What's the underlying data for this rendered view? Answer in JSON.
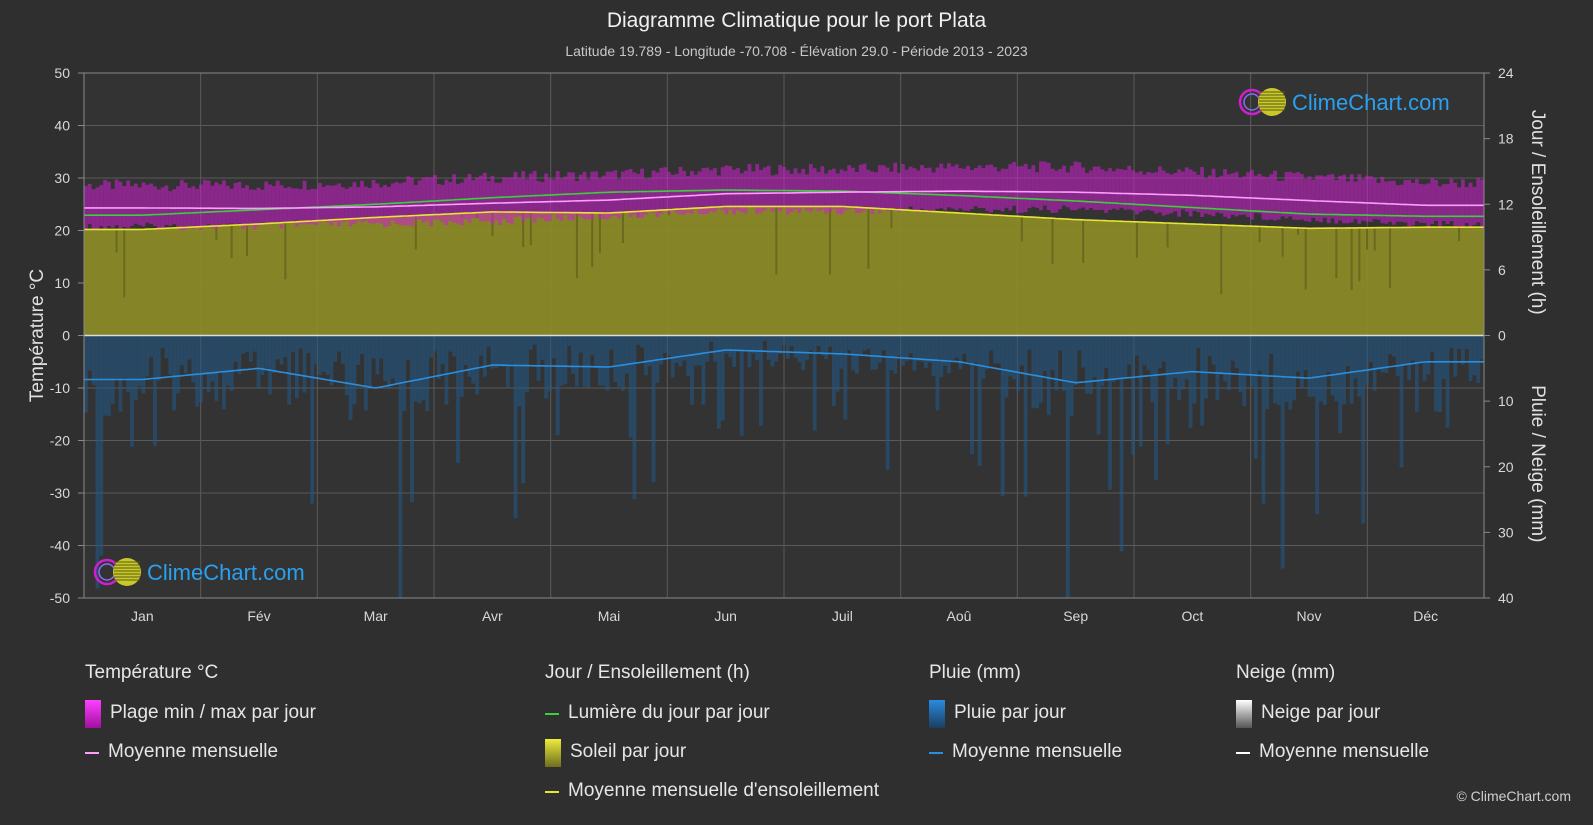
{
  "header": {
    "title": "Diagramme Climatique pour le port Plata",
    "subtitle": "Latitude 19.789 - Longitude -70.708 - Élévation 29.0 - Période 2013 - 2023"
  },
  "axes": {
    "left_label": "Température °C",
    "right_top_label": "Jour / Ensoleillement (h)",
    "right_bottom_label": "Pluie / Neige (mm)",
    "left_ticks": [
      "50",
      "40",
      "30",
      "20",
      "10",
      "0",
      "-10",
      "-20",
      "-30",
      "-40",
      "-50"
    ],
    "right_top_ticks": [
      "24",
      "18",
      "12",
      "6",
      "0"
    ],
    "right_bottom_ticks": [
      "10",
      "20",
      "30",
      "40"
    ]
  },
  "logo_text": "ClimeChart.com",
  "copyright": "© ClimeChart.com",
  "legend": {
    "temperature": {
      "title": "Température °C",
      "range": "Plage min / max par jour",
      "mean": "Moyenne mensuelle"
    },
    "sun": {
      "title": "Jour / Ensoleillement (h)",
      "daylight": "Lumière du jour par jour",
      "sunshine": "Soleil par jour",
      "mean": "Moyenne mensuelle d'ensoleillement"
    },
    "rain": {
      "title": "Pluie (mm)",
      "daily": "Pluie par jour",
      "mean": "Moyenne mensuelle"
    },
    "snow": {
      "title": "Neige (mm)",
      "daily": "Neige par jour",
      "mean": "Moyenne mensuelle"
    }
  },
  "colors": {
    "background": "#2f2f2f",
    "temp_range": "#d21ed2",
    "temp_mean": "#ff9cff",
    "daylight": "#3ccf3c",
    "sunshine_fill": "#8c8c26",
    "sunshine_mean": "#e6e632",
    "rain_fill": "#1f5a8a",
    "rain_mean": "#2b8fe0",
    "snow_mean": "#ffffff",
    "logo_text": "#2aa0f0"
  },
  "chart_data": {
    "type": "area",
    "title": "Diagramme Climatique pour le port Plata",
    "categories": [
      "Jan",
      "Fév",
      "Mar",
      "Avr",
      "Mai",
      "Jun",
      "Juil",
      "Aoû",
      "Sep",
      "Oct",
      "Nov",
      "Déc"
    ],
    "temperature_axis": {
      "label": "Température °C",
      "range": [
        -50,
        50
      ]
    },
    "sun_axis": {
      "label": "Jour / Ensoleillement (h)",
      "range": [
        0,
        24
      ]
    },
    "precip_axis": {
      "label": "Pluie / Neige (mm)",
      "range": [
        0,
        40
      ],
      "inverted": true
    },
    "series": [
      {
        "name": "Plage min / max par jour",
        "axis": "temperature",
        "min": [
          21.5,
          21.5,
          22,
          22.5,
          23.5,
          24.5,
          24.5,
          24.8,
          24.8,
          24,
          23,
          22
        ],
        "max": [
          27.5,
          27.5,
          28,
          29,
          29.5,
          30.5,
          30.5,
          31,
          31,
          30,
          29,
          28
        ]
      },
      {
        "name": "Moyenne mensuelle",
        "axis": "temperature",
        "values": [
          24.3,
          24.2,
          24.5,
          25.2,
          25.8,
          27,
          27.3,
          27.5,
          27.3,
          26.7,
          25.7,
          24.8
        ]
      },
      {
        "name": "Lumière du jour par jour",
        "axis": "sun",
        "values": [
          11.0,
          11.5,
          12.0,
          12.6,
          13.1,
          13.3,
          13.2,
          12.8,
          12.3,
          11.7,
          11.1,
          10.9
        ]
      },
      {
        "name": "Soleil par jour",
        "axis": "sun",
        "values": [
          9.7,
          10.2,
          10.8,
          11.3,
          11.2,
          11.8,
          11.8,
          11.2,
          10.6,
          10.2,
          9.8,
          9.9
        ]
      },
      {
        "name": "Moyenne mensuelle d'ensoleillement",
        "axis": "sun",
        "values": [
          9.7,
          10.2,
          10.8,
          11.3,
          11.2,
          11.8,
          11.8,
          11.2,
          10.6,
          10.2,
          9.8,
          9.9
        ]
      },
      {
        "name": "Pluie par jour",
        "axis": "precip",
        "values": [
          6.5,
          5.0,
          8.0,
          4.5,
          5.0,
          2.5,
          3.0,
          4.0,
          7.0,
          5.5,
          6.5,
          4.0
        ]
      },
      {
        "name": "Moyenne mensuelle",
        "axis": "precip",
        "values": [
          6.7,
          5.0,
          8.0,
          4.5,
          4.8,
          2.2,
          2.8,
          4.0,
          7.2,
          5.5,
          6.5,
          4.0
        ]
      }
    ],
    "grid": true,
    "legend_position": "bottom"
  }
}
